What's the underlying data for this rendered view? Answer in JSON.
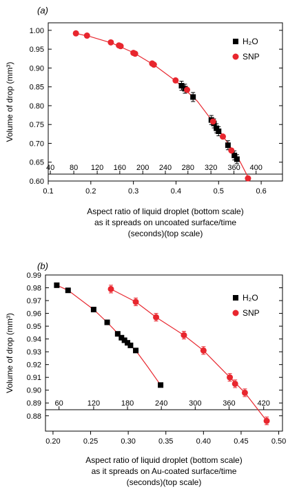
{
  "chart_data": [
    {
      "type": "scatter",
      "panel_label": "(a)",
      "ylabel": "Volume of drop (mm³)",
      "xlabel_lines": [
        "Aspect ratio of liquid droplet (bottom scale)",
        "as it spreads on uncoated surface/time",
        "(seconds)(top scale)"
      ],
      "xlim": [
        0.1,
        0.65
      ],
      "ylim": [
        0.6,
        1.02
      ],
      "x_ticks": [
        0.1,
        0.2,
        0.3,
        0.4,
        0.5,
        0.6
      ],
      "x_tick_labels": [
        "0.1",
        "0.2",
        "0.3",
        "0.4",
        "0.5",
        "0.6"
      ],
      "y_ticks": [
        0.6,
        0.65,
        0.7,
        0.75,
        0.8,
        0.85,
        0.9,
        0.95,
        1.0
      ],
      "y_tick_labels": [
        "0.60",
        "0.65",
        "0.70",
        "0.75",
        "0.80",
        "0.85",
        "0.90",
        "0.95",
        "1.00"
      ],
      "top_ticks": [
        {
          "x": 0.105,
          "label": "40"
        },
        {
          "x": 0.16,
          "label": "80"
        },
        {
          "x": 0.215,
          "label": "120"
        },
        {
          "x": 0.268,
          "label": "160"
        },
        {
          "x": 0.322,
          "label": "200"
        },
        {
          "x": 0.375,
          "label": "240"
        },
        {
          "x": 0.428,
          "label": "280"
        },
        {
          "x": 0.482,
          "label": "320"
        },
        {
          "x": 0.536,
          "label": "360"
        },
        {
          "x": 0.588,
          "label": "400"
        }
      ],
      "legend": {
        "position": "top-right",
        "entries": [
          "H₂O",
          "SNP"
        ]
      },
      "series": [
        {
          "name": "H₂O",
          "marker": "square",
          "color": "#000000",
          "points": [
            {
              "x": 0.413,
              "y": 0.853,
              "err": 0.012
            },
            {
              "x": 0.421,
              "y": 0.845,
              "err": 0.012
            },
            {
              "x": 0.44,
              "y": 0.823,
              "err": 0.012
            },
            {
              "x": 0.483,
              "y": 0.762,
              "err": 0.012
            },
            {
              "x": 0.489,
              "y": 0.753,
              "err": 0.012
            },
            {
              "x": 0.495,
              "y": 0.74,
              "err": 0.012
            },
            {
              "x": 0.5,
              "y": 0.732,
              "err": 0.012
            },
            {
              "x": 0.522,
              "y": 0.695,
              "err": 0.012
            },
            {
              "x": 0.537,
              "y": 0.668,
              "err": 0.012
            },
            {
              "x": 0.543,
              "y": 0.658,
              "err": 0.012
            }
          ]
        },
        {
          "name": "SNP",
          "marker": "circle",
          "color": "#e8262e",
          "points": [
            {
              "x": 0.165,
              "y": 0.992
            },
            {
              "x": 0.191,
              "y": 0.986
            },
            {
              "x": 0.247,
              "y": 0.968
            },
            {
              "x": 0.266,
              "y": 0.96
            },
            {
              "x": 0.27,
              "y": 0.958
            },
            {
              "x": 0.3,
              "y": 0.94
            },
            {
              "x": 0.304,
              "y": 0.938
            },
            {
              "x": 0.344,
              "y": 0.912
            },
            {
              "x": 0.348,
              "y": 0.909
            },
            {
              "x": 0.399,
              "y": 0.867
            },
            {
              "x": 0.426,
              "y": 0.842
            },
            {
              "x": 0.487,
              "y": 0.758
            },
            {
              "x": 0.51,
              "y": 0.718
            },
            {
              "x": 0.53,
              "y": 0.681
            },
            {
              "x": 0.569,
              "y": 0.607
            }
          ]
        }
      ],
      "fit_line": {
        "color": "#e8262e",
        "x": [
          0.165,
          0.2,
          0.25,
          0.3,
          0.35,
          0.4,
          0.45,
          0.5,
          0.55,
          0.572
        ],
        "y": [
          0.992,
          0.983,
          0.966,
          0.941,
          0.907,
          0.865,
          0.812,
          0.737,
          0.652,
          0.604
        ]
      }
    },
    {
      "type": "scatter",
      "panel_label": "(b)",
      "ylabel": "Volume of drop (mm³)",
      "xlabel_lines": [
        "Aspect ratio of liquid droplet (bottom scale)",
        "as it spreads on Au-coated surface/time",
        "(seconds)(top scale)"
      ],
      "xlim": [
        0.19,
        0.505
      ],
      "ylim": [
        0.868,
        0.99
      ],
      "x_ticks": [
        0.2,
        0.25,
        0.3,
        0.35,
        0.4,
        0.45,
        0.5
      ],
      "x_tick_labels": [
        "0.20",
        "0.25",
        "0.30",
        "0.35",
        "0.40",
        "0.45",
        "0.50"
      ],
      "y_ticks": [
        0.88,
        0.89,
        0.9,
        0.91,
        0.92,
        0.93,
        0.94,
        0.95,
        0.96,
        0.97,
        0.98,
        0.99
      ],
      "y_tick_labels": [
        "0.88",
        "0.89",
        "0.90",
        "0.91",
        "0.92",
        "0.93",
        "0.94",
        "0.95",
        "0.96",
        "0.97",
        "0.98",
        "0.99"
      ],
      "top_ticks": [
        {
          "x": 0.208,
          "label": "60"
        },
        {
          "x": 0.254,
          "label": "120"
        },
        {
          "x": 0.299,
          "label": "180"
        },
        {
          "x": 0.344,
          "label": "240"
        },
        {
          "x": 0.389,
          "label": "300"
        },
        {
          "x": 0.434,
          "label": "360"
        },
        {
          "x": 0.48,
          "label": "420"
        }
      ],
      "legend": {
        "position": "top-right",
        "entries": [
          "H₂O",
          "SNP"
        ]
      },
      "series": [
        {
          "name": "H₂O",
          "marker": "square",
          "color": "#000000",
          "points": [
            {
              "x": 0.205,
              "y": 0.982
            },
            {
              "x": 0.22,
              "y": 0.978
            },
            {
              "x": 0.254,
              "y": 0.963
            },
            {
              "x": 0.272,
              "y": 0.953
            },
            {
              "x": 0.286,
              "y": 0.944
            },
            {
              "x": 0.291,
              "y": 0.941
            },
            {
              "x": 0.295,
              "y": 0.939
            },
            {
              "x": 0.299,
              "y": 0.937
            },
            {
              "x": 0.303,
              "y": 0.935
            },
            {
              "x": 0.31,
              "y": 0.931
            },
            {
              "x": 0.343,
              "y": 0.904
            }
          ]
        },
        {
          "name": "SNP",
          "marker": "circle",
          "color": "#e8262e",
          "points": [
            {
              "x": 0.277,
              "y": 0.979,
              "err": 0.003
            },
            {
              "x": 0.31,
              "y": 0.969,
              "err": 0.003
            },
            {
              "x": 0.337,
              "y": 0.957,
              "err": 0.003
            },
            {
              "x": 0.374,
              "y": 0.943,
              "err": 0.003
            },
            {
              "x": 0.4,
              "y": 0.931,
              "err": 0.003
            },
            {
              "x": 0.435,
              "y": 0.91,
              "err": 0.003
            },
            {
              "x": 0.442,
              "y": 0.905,
              "err": 0.003
            },
            {
              "x": 0.455,
              "y": 0.898,
              "err": 0.003
            },
            {
              "x": 0.484,
              "y": 0.876,
              "err": 0.003
            }
          ]
        }
      ],
      "fit_lines": [
        {
          "color": "#e8262e",
          "x": [
            0.205,
            0.22,
            0.254,
            0.272,
            0.29,
            0.31,
            0.325,
            0.343
          ],
          "y": [
            0.982,
            0.978,
            0.963,
            0.953,
            0.942,
            0.931,
            0.919,
            0.904
          ]
        },
        {
          "color": "#e8262e",
          "x": [
            0.277,
            0.31,
            0.337,
            0.374,
            0.4,
            0.435,
            0.455,
            0.484
          ],
          "y": [
            0.979,
            0.969,
            0.957,
            0.943,
            0.931,
            0.91,
            0.898,
            0.876
          ]
        }
      ]
    }
  ]
}
